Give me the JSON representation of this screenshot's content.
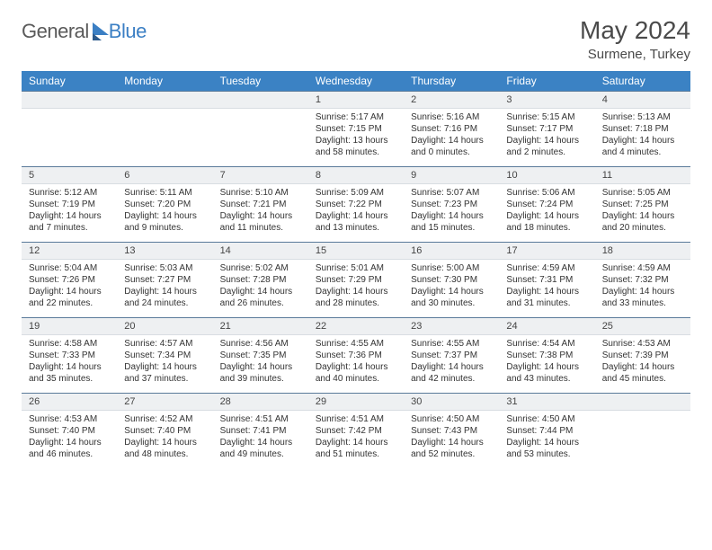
{
  "logo": {
    "text1": "General",
    "text2": "Blue"
  },
  "title": "May 2024",
  "location": "Surmene, Turkey",
  "colors": {
    "header_bg": "#3b82c4",
    "header_text": "#ffffff",
    "daynum_bg": "#eef0f2",
    "row_border": "#5a7a9a",
    "text": "#333333",
    "logo_gray": "#5a5a5a",
    "logo_blue": "#3b7fc4"
  },
  "day_headers": [
    "Sunday",
    "Monday",
    "Tuesday",
    "Wednesday",
    "Thursday",
    "Friday",
    "Saturday"
  ],
  "weeks": [
    [
      {
        "n": "",
        "sr": "",
        "ss": "",
        "dl": ""
      },
      {
        "n": "",
        "sr": "",
        "ss": "",
        "dl": ""
      },
      {
        "n": "",
        "sr": "",
        "ss": "",
        "dl": ""
      },
      {
        "n": "1",
        "sr": "5:17 AM",
        "ss": "7:15 PM",
        "dl": "13 hours and 58 minutes."
      },
      {
        "n": "2",
        "sr": "5:16 AM",
        "ss": "7:16 PM",
        "dl": "14 hours and 0 minutes."
      },
      {
        "n": "3",
        "sr": "5:15 AM",
        "ss": "7:17 PM",
        "dl": "14 hours and 2 minutes."
      },
      {
        "n": "4",
        "sr": "5:13 AM",
        "ss": "7:18 PM",
        "dl": "14 hours and 4 minutes."
      }
    ],
    [
      {
        "n": "5",
        "sr": "5:12 AM",
        "ss": "7:19 PM",
        "dl": "14 hours and 7 minutes."
      },
      {
        "n": "6",
        "sr": "5:11 AM",
        "ss": "7:20 PM",
        "dl": "14 hours and 9 minutes."
      },
      {
        "n": "7",
        "sr": "5:10 AM",
        "ss": "7:21 PM",
        "dl": "14 hours and 11 minutes."
      },
      {
        "n": "8",
        "sr": "5:09 AM",
        "ss": "7:22 PM",
        "dl": "14 hours and 13 minutes."
      },
      {
        "n": "9",
        "sr": "5:07 AM",
        "ss": "7:23 PM",
        "dl": "14 hours and 15 minutes."
      },
      {
        "n": "10",
        "sr": "5:06 AM",
        "ss": "7:24 PM",
        "dl": "14 hours and 18 minutes."
      },
      {
        "n": "11",
        "sr": "5:05 AM",
        "ss": "7:25 PM",
        "dl": "14 hours and 20 minutes."
      }
    ],
    [
      {
        "n": "12",
        "sr": "5:04 AM",
        "ss": "7:26 PM",
        "dl": "14 hours and 22 minutes."
      },
      {
        "n": "13",
        "sr": "5:03 AM",
        "ss": "7:27 PM",
        "dl": "14 hours and 24 minutes."
      },
      {
        "n": "14",
        "sr": "5:02 AM",
        "ss": "7:28 PM",
        "dl": "14 hours and 26 minutes."
      },
      {
        "n": "15",
        "sr": "5:01 AM",
        "ss": "7:29 PM",
        "dl": "14 hours and 28 minutes."
      },
      {
        "n": "16",
        "sr": "5:00 AM",
        "ss": "7:30 PM",
        "dl": "14 hours and 30 minutes."
      },
      {
        "n": "17",
        "sr": "4:59 AM",
        "ss": "7:31 PM",
        "dl": "14 hours and 31 minutes."
      },
      {
        "n": "18",
        "sr": "4:59 AM",
        "ss": "7:32 PM",
        "dl": "14 hours and 33 minutes."
      }
    ],
    [
      {
        "n": "19",
        "sr": "4:58 AM",
        "ss": "7:33 PM",
        "dl": "14 hours and 35 minutes."
      },
      {
        "n": "20",
        "sr": "4:57 AM",
        "ss": "7:34 PM",
        "dl": "14 hours and 37 minutes."
      },
      {
        "n": "21",
        "sr": "4:56 AM",
        "ss": "7:35 PM",
        "dl": "14 hours and 39 minutes."
      },
      {
        "n": "22",
        "sr": "4:55 AM",
        "ss": "7:36 PM",
        "dl": "14 hours and 40 minutes."
      },
      {
        "n": "23",
        "sr": "4:55 AM",
        "ss": "7:37 PM",
        "dl": "14 hours and 42 minutes."
      },
      {
        "n": "24",
        "sr": "4:54 AM",
        "ss": "7:38 PM",
        "dl": "14 hours and 43 minutes."
      },
      {
        "n": "25",
        "sr": "4:53 AM",
        "ss": "7:39 PM",
        "dl": "14 hours and 45 minutes."
      }
    ],
    [
      {
        "n": "26",
        "sr": "4:53 AM",
        "ss": "7:40 PM",
        "dl": "14 hours and 46 minutes."
      },
      {
        "n": "27",
        "sr": "4:52 AM",
        "ss": "7:40 PM",
        "dl": "14 hours and 48 minutes."
      },
      {
        "n": "28",
        "sr": "4:51 AM",
        "ss": "7:41 PM",
        "dl": "14 hours and 49 minutes."
      },
      {
        "n": "29",
        "sr": "4:51 AM",
        "ss": "7:42 PM",
        "dl": "14 hours and 51 minutes."
      },
      {
        "n": "30",
        "sr": "4:50 AM",
        "ss": "7:43 PM",
        "dl": "14 hours and 52 minutes."
      },
      {
        "n": "31",
        "sr": "4:50 AM",
        "ss": "7:44 PM",
        "dl": "14 hours and 53 minutes."
      },
      {
        "n": "",
        "sr": "",
        "ss": "",
        "dl": ""
      }
    ]
  ],
  "labels": {
    "sunrise": "Sunrise:",
    "sunset": "Sunset:",
    "daylight": "Daylight:"
  }
}
